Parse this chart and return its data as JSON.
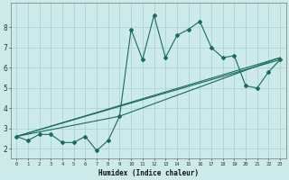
{
  "xlabel": "Humidex (Indice chaleur)",
  "xlim": [
    -0.5,
    23.5
  ],
  "ylim": [
    1.5,
    9.2
  ],
  "yticks": [
    2,
    3,
    4,
    5,
    6,
    7,
    8
  ],
  "xticks": [
    0,
    1,
    2,
    3,
    4,
    5,
    6,
    7,
    8,
    9,
    10,
    11,
    12,
    13,
    14,
    15,
    16,
    17,
    18,
    19,
    20,
    21,
    22,
    23
  ],
  "background_color": "#cceaea",
  "grid_color": "#aad4d4",
  "line_color": "#1a6b5a",
  "line1_x": [
    0,
    1,
    2,
    3,
    4,
    5,
    6,
    7,
    8,
    9,
    10,
    11,
    12,
    13,
    14,
    15,
    16,
    17,
    18,
    19,
    20,
    21,
    22,
    23
  ],
  "line1_y": [
    2.6,
    2.4,
    2.7,
    2.7,
    2.3,
    2.3,
    2.6,
    1.9,
    2.4,
    3.6,
    7.9,
    6.4,
    8.6,
    6.5,
    7.6,
    7.9,
    8.3,
    7.0,
    6.5,
    6.6,
    5.1,
    5.0,
    5.8,
    6.4
  ],
  "line2_x": [
    0,
    23
  ],
  "line2_y": [
    2.6,
    6.5
  ],
  "line3_x": [
    0,
    23
  ],
  "line3_y": [
    2.6,
    6.4
  ],
  "line4_x": [
    0,
    9,
    23
  ],
  "line4_y": [
    2.6,
    3.6,
    6.5
  ]
}
